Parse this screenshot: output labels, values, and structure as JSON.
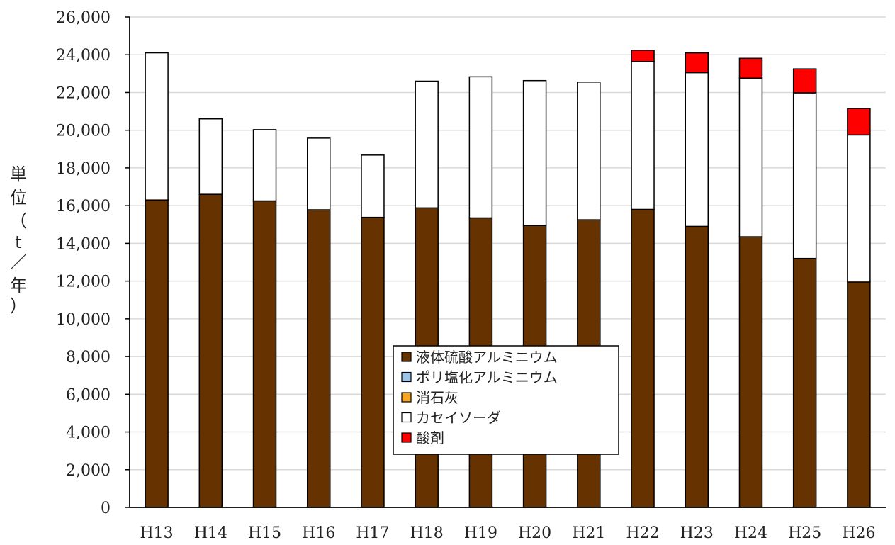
{
  "chart_data": {
    "type": "bar",
    "stacked": true,
    "categories": [
      "H13",
      "H14",
      "H15",
      "H16",
      "H17",
      "H18",
      "H19",
      "H20",
      "H21",
      "H22",
      "H23",
      "H24",
      "H25",
      "H26"
    ],
    "series": [
      {
        "name": "液体硫酸アルミニウム",
        "color": "#663300",
        "values": [
          16300,
          16600,
          16250,
          15780,
          15380,
          15880,
          15350,
          14950,
          15250,
          15800,
          14900,
          14350,
          13200,
          11950
        ]
      },
      {
        "name": "ポリ塩化アルミニウム",
        "color": "#9DC3E6",
        "values": [
          0,
          0,
          0,
          0,
          0,
          0,
          0,
          0,
          0,
          0,
          0,
          0,
          0,
          0
        ]
      },
      {
        "name": "消石灰",
        "color": "#F5A623",
        "values": [
          0,
          0,
          0,
          0,
          0,
          0,
          0,
          0,
          0,
          0,
          0,
          0,
          0,
          0
        ]
      },
      {
        "name": "カセイソーダ",
        "color": "#FFFFFF",
        "values": [
          7800,
          4000,
          3780,
          3800,
          3300,
          6720,
          7480,
          7680,
          7300,
          7840,
          8150,
          8410,
          8780,
          7800
        ]
      },
      {
        "name": "酸剤",
        "color": "#FF0000",
        "values": [
          0,
          0,
          0,
          0,
          0,
          0,
          0,
          0,
          0,
          600,
          1050,
          1050,
          1270,
          1400
        ]
      }
    ],
    "ylim": [
      0,
      26000
    ],
    "yticks": [
      "0",
      "2,000",
      "4,000",
      "6,000",
      "8,000",
      "10,000",
      "12,000",
      "14,000",
      "16,000",
      "18,000",
      "20,000",
      "22,000",
      "24,000",
      "26,000"
    ],
    "ylabel_chars": [
      "単",
      "位",
      "（",
      "t",
      "／",
      "年",
      "）"
    ],
    "grid": true,
    "legend": {
      "placement": "center-bottom",
      "entries": [
        "液体硫酸アルミニウム",
        "ポリ塩化アルミニウム",
        "消石灰",
        "カセイソーダ",
        "酸剤"
      ]
    }
  }
}
